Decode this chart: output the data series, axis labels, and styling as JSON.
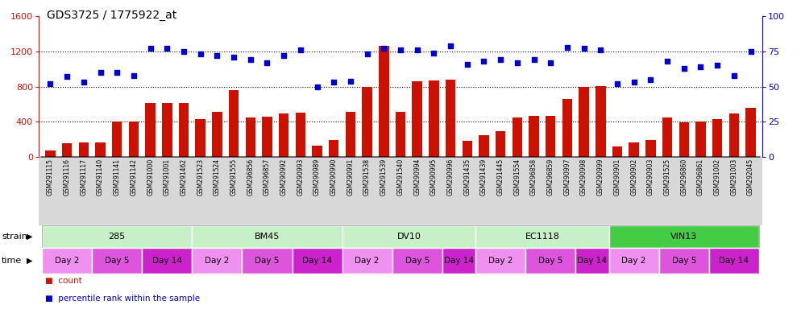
{
  "title": "GDS3725 / 1775922_at",
  "samples": [
    "GSM291115",
    "GSM291116",
    "GSM291117",
    "GSM291140",
    "GSM291141",
    "GSM291142",
    "GSM291000",
    "GSM291001",
    "GSM291462",
    "GSM291523",
    "GSM291524",
    "GSM291555",
    "GSM296856",
    "GSM296857",
    "GSM290992",
    "GSM290993",
    "GSM290989",
    "GSM290990",
    "GSM290991",
    "GSM291538",
    "GSM291539",
    "GSM291540",
    "GSM290994",
    "GSM290995",
    "GSM290996",
    "GSM291435",
    "GSM291439",
    "GSM291445",
    "GSM291554",
    "GSM296858",
    "GSM296859",
    "GSM290997",
    "GSM290998",
    "GSM290999",
    "GSM290901",
    "GSM290902",
    "GSM290903",
    "GSM291525",
    "GSM296860",
    "GSM296861",
    "GSM291002",
    "GSM291003",
    "GSM292045"
  ],
  "counts": [
    75,
    155,
    165,
    165,
    405,
    405,
    610,
    610,
    610,
    430,
    510,
    755,
    445,
    455,
    490,
    505,
    130,
    195,
    510,
    800,
    1265,
    510,
    860,
    870,
    875,
    180,
    250,
    295,
    445,
    470,
    465,
    660,
    800,
    805,
    115,
    165,
    195,
    450,
    390,
    400,
    430,
    490,
    560
  ],
  "percentiles": [
    52,
    57,
    53,
    60,
    60,
    58,
    77,
    77,
    75,
    73,
    72,
    71,
    69,
    67,
    72,
    76,
    50,
    53,
    54,
    73,
    77,
    76,
    76,
    74,
    79,
    66,
    68,
    69,
    67,
    69,
    67,
    78,
    77,
    76,
    52,
    53,
    55,
    68,
    63,
    64,
    65,
    58,
    75
  ],
  "strains": [
    {
      "name": "285",
      "start": 0,
      "end": 8,
      "color": "#c8f0c8"
    },
    {
      "name": "BM45",
      "start": 9,
      "end": 17,
      "color": "#c8f0c8"
    },
    {
      "name": "DV10",
      "start": 18,
      "end": 25,
      "color": "#c8f0c8"
    },
    {
      "name": "EC1118",
      "start": 26,
      "end": 33,
      "color": "#c8f0c8"
    },
    {
      "name": "VIN13",
      "start": 34,
      "end": 42,
      "color": "#44cc44"
    }
  ],
  "time_groups": [
    {
      "name": "Day 2",
      "start": 0,
      "end": 2,
      "color": "#f090f0"
    },
    {
      "name": "Day 5",
      "start": 3,
      "end": 5,
      "color": "#dd55dd"
    },
    {
      "name": "Day 14",
      "start": 6,
      "end": 8,
      "color": "#cc22cc"
    },
    {
      "name": "Day 2",
      "start": 9,
      "end": 11,
      "color": "#f090f0"
    },
    {
      "name": "Day 5",
      "start": 12,
      "end": 14,
      "color": "#dd55dd"
    },
    {
      "name": "Day 14",
      "start": 15,
      "end": 17,
      "color": "#cc22cc"
    },
    {
      "name": "Day 2",
      "start": 18,
      "end": 20,
      "color": "#f090f0"
    },
    {
      "name": "Day 5",
      "start": 21,
      "end": 23,
      "color": "#dd55dd"
    },
    {
      "name": "Day 14",
      "start": 24,
      "end": 25,
      "color": "#cc22cc"
    },
    {
      "name": "Day 2",
      "start": 26,
      "end": 28,
      "color": "#f090f0"
    },
    {
      "name": "Day 5",
      "start": 29,
      "end": 31,
      "color": "#dd55dd"
    },
    {
      "name": "Day 14",
      "start": 32,
      "end": 33,
      "color": "#cc22cc"
    },
    {
      "name": "Day 2",
      "start": 34,
      "end": 36,
      "color": "#f090f0"
    },
    {
      "name": "Day 5",
      "start": 37,
      "end": 39,
      "color": "#dd55dd"
    },
    {
      "name": "Day 14",
      "start": 40,
      "end": 42,
      "color": "#cc22cc"
    }
  ],
  "ylim_left": [
    0,
    1600
  ],
  "ylim_right": [
    0,
    100
  ],
  "yticks_left": [
    0,
    400,
    800,
    1200,
    1600
  ],
  "yticks_right": [
    0,
    25,
    50,
    75,
    100
  ],
  "bar_color": "#cc1100",
  "dot_color": "#0000cc",
  "bg_color": "#ffffff",
  "xtick_bg": "#d8d8d8",
  "strain_bg": "#e8e8e8",
  "left_label_color": "#888888"
}
